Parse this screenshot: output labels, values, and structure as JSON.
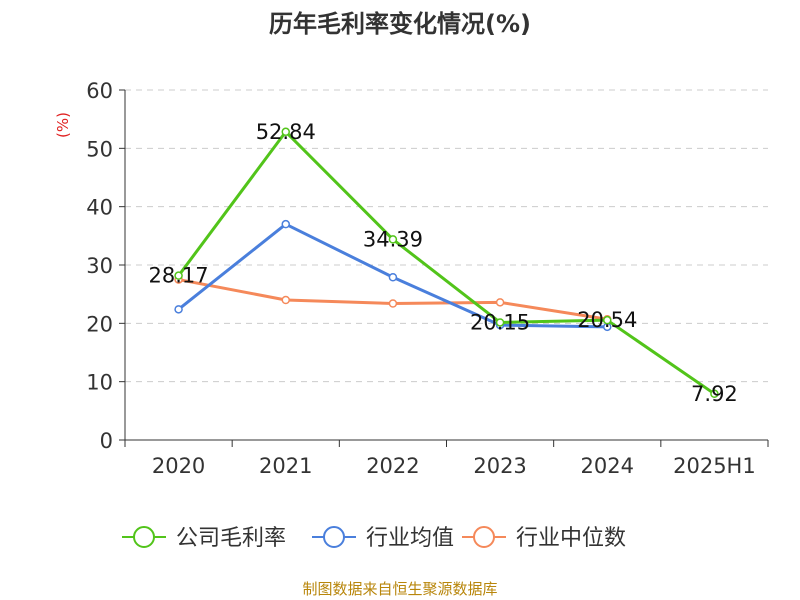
{
  "chart_data": {
    "type": "line",
    "title": "历年毛利率变化情况(%)",
    "ylabel": "(%)",
    "xlabel": "",
    "categories": [
      "2020",
      "2021",
      "2022",
      "2023",
      "2024",
      "2025H1"
    ],
    "ylim": [
      0,
      60
    ],
    "yticks": [
      0,
      10,
      20,
      30,
      40,
      50,
      60
    ],
    "grid": true,
    "legend_position": "bottom",
    "series": [
      {
        "name": "公司毛利率",
        "color": "#52c41a",
        "values": [
          28.17,
          52.84,
          34.39,
          20.15,
          20.54,
          7.92
        ],
        "labels": [
          "28.17",
          "52.84",
          "34.39",
          "20.15",
          "20.54",
          "7.92"
        ]
      },
      {
        "name": "行业均值",
        "color": "#4a7fdc",
        "values": [
          22.4,
          37.0,
          27.9,
          19.7,
          19.4,
          null
        ]
      },
      {
        "name": "行业中位数",
        "color": "#f5895a",
        "values": [
          27.5,
          24.0,
          23.4,
          23.6,
          20.7,
          null
        ]
      }
    ]
  },
  "footer": {
    "source": "制图数据来自恒生聚源数据库"
  },
  "colors": {
    "axis": "#333333",
    "grid": "#cccccc",
    "ylabel": "#e02020",
    "source": "#b8860b"
  }
}
